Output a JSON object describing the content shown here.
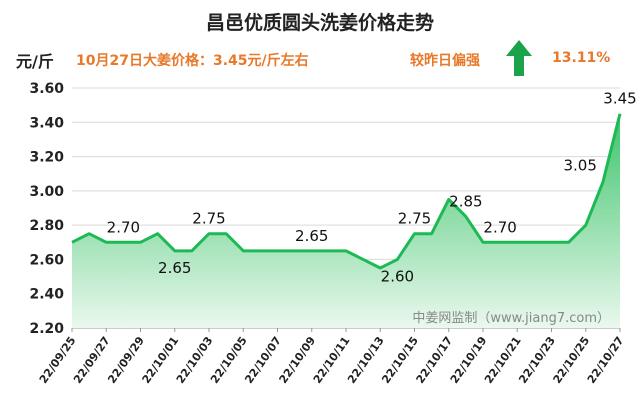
{
  "header": {
    "title": "昌邑优质圆头洗姜价格走势",
    "unit": "元/斤",
    "price_note": "10月27日大姜价格：3.45元/斤左右",
    "compare_label": "较昨日偏强",
    "change_pct": "13.11%",
    "arrow_icon": "up-arrow-icon",
    "accent_color": "#e8782a",
    "arrow_color": "#1aa34a"
  },
  "watermark": "中姜网监制（www.jiang7.com）",
  "chart_data": {
    "type": "area",
    "title": "昌邑优质圆头洗姜价格走势",
    "ylabel": "元/斤",
    "xlabel": "",
    "ylim": [
      2.2,
      3.6
    ],
    "yticks": [
      "2.20",
      "2.40",
      "2.60",
      "2.80",
      "3.00",
      "3.20",
      "3.40",
      "3.60"
    ],
    "grid": true,
    "line_color": "#1db954",
    "fill_top_color": "#3cc46a",
    "fill_bottom_color": "#eaf8ee",
    "xtick_labels": [
      "22/09/25",
      "22/09/27",
      "22/09/29",
      "22/10/01",
      "22/10/03",
      "22/10/05",
      "22/10/07",
      "22/10/09",
      "22/10/11",
      "22/10/13",
      "22/10/15",
      "22/10/17",
      "22/10/19",
      "22/10/21",
      "22/10/23",
      "22/10/25",
      "22/10/27"
    ],
    "x": [
      "22/09/25",
      "22/09/26",
      "22/09/27",
      "22/09/28",
      "22/09/29",
      "22/09/30",
      "22/10/01",
      "22/10/02",
      "22/10/03",
      "22/10/04",
      "22/10/05",
      "22/10/06",
      "22/10/07",
      "22/10/08",
      "22/10/09",
      "22/10/10",
      "22/10/11",
      "22/10/12",
      "22/10/13",
      "22/10/14",
      "22/10/15",
      "22/10/16",
      "22/10/17",
      "22/10/18",
      "22/10/19",
      "22/10/20",
      "22/10/21",
      "22/10/22",
      "22/10/23",
      "22/10/24",
      "22/10/25",
      "22/10/26",
      "22/10/27"
    ],
    "values": [
      2.7,
      2.75,
      2.7,
      2.7,
      2.7,
      2.75,
      2.65,
      2.65,
      2.75,
      2.75,
      2.65,
      2.65,
      2.65,
      2.65,
      2.65,
      2.65,
      2.65,
      2.6,
      2.55,
      2.6,
      2.75,
      2.75,
      2.95,
      2.85,
      2.7,
      2.7,
      2.7,
      2.7,
      2.7,
      2.7,
      2.8,
      3.05,
      3.45
    ],
    "data_labels": [
      {
        "index": 3,
        "text": "2.70",
        "pos": "above"
      },
      {
        "index": 6,
        "text": "2.65",
        "pos": "below"
      },
      {
        "index": 8,
        "text": "2.75",
        "pos": "above"
      },
      {
        "index": 14,
        "text": "2.65",
        "pos": "above"
      },
      {
        "index": 19,
        "text": "2.60",
        "pos": "below"
      },
      {
        "index": 20,
        "text": "2.75",
        "pos": "above"
      },
      {
        "index": 23,
        "text": "2.85",
        "pos": "above"
      },
      {
        "index": 25,
        "text": "2.70",
        "pos": "above"
      },
      {
        "index": 31,
        "text": "3.05",
        "pos": "above-left"
      },
      {
        "index": 32,
        "text": "3.45",
        "pos": "above"
      }
    ]
  }
}
